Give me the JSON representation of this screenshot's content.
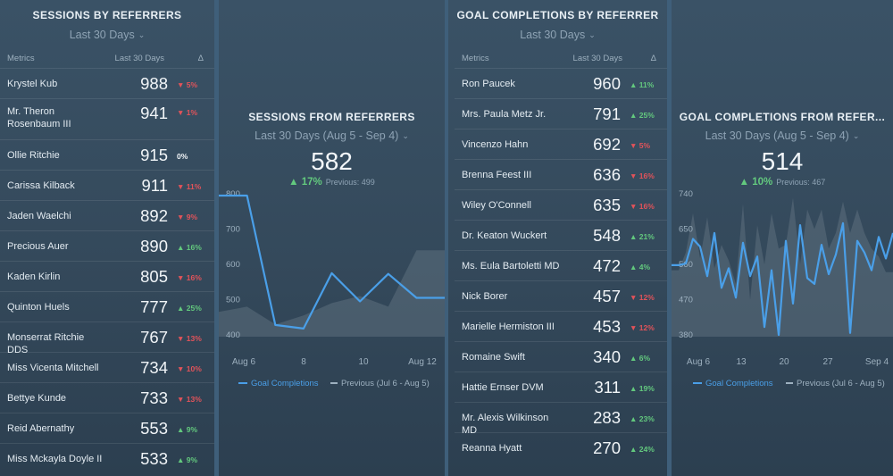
{
  "sessions_table": {
    "title": "SESSIONS BY REFERRERS",
    "period": "Last 30 Days",
    "col_metrics": "Metrics",
    "col_period": "Last 30 Days",
    "col_delta": "Δ",
    "rows": [
      {
        "name": "Krystel Kub",
        "value": "988",
        "delta": "5%",
        "dir": "down"
      },
      {
        "name": "Mr. Theron Rosenbaum III",
        "value": "941",
        "delta": "1%",
        "dir": "down"
      },
      {
        "name": "Ollie Ritchie",
        "value": "915",
        "delta": "0%",
        "dir": "flat"
      },
      {
        "name": "Carissa Kilback",
        "value": "911",
        "delta": "11%",
        "dir": "down"
      },
      {
        "name": "Jaden Waelchi",
        "value": "892",
        "delta": "9%",
        "dir": "down"
      },
      {
        "name": "Precious Auer",
        "value": "890",
        "delta": "16%",
        "dir": "up"
      },
      {
        "name": "Kaden Kirlin",
        "value": "805",
        "delta": "16%",
        "dir": "down"
      },
      {
        "name": "Quinton Huels",
        "value": "777",
        "delta": "25%",
        "dir": "up"
      },
      {
        "name": "Monserrat Ritchie DDS",
        "value": "767",
        "delta": "13%",
        "dir": "down"
      },
      {
        "name": "Miss Vicenta Mitchell",
        "value": "734",
        "delta": "10%",
        "dir": "down"
      },
      {
        "name": "Bettye Kunde",
        "value": "733",
        "delta": "13%",
        "dir": "down"
      },
      {
        "name": "Reid Abernathy",
        "value": "553",
        "delta": "9%",
        "dir": "up"
      },
      {
        "name": "Miss Mckayla Doyle II",
        "value": "533",
        "delta": "9%",
        "dir": "up"
      }
    ]
  },
  "sessions_chart": {
    "title": "SESSIONS FROM REFERRERS",
    "period": "Last 30 Days (Aug 5 - Sep 4)",
    "big_value": "582",
    "change": "17%",
    "change_dir": "up",
    "previous": "Previous: 499",
    "legend_current": "Goal Completions",
    "legend_previous": "Previous (Jul 6 - Aug 5)"
  },
  "goals_table": {
    "title": "GOAL COMPLETIONS BY REFERRER",
    "period": "Last 30 Days",
    "col_metrics": "Metrics",
    "col_period": "Last 30 Days",
    "col_delta": "Δ",
    "rows": [
      {
        "name": "Ron Paucek",
        "value": "960",
        "delta": "11%",
        "dir": "up"
      },
      {
        "name": "Mrs. Paula Metz Jr.",
        "value": "791",
        "delta": "25%",
        "dir": "up"
      },
      {
        "name": "Vincenzo Hahn",
        "value": "692",
        "delta": "5%",
        "dir": "down"
      },
      {
        "name": "Brenna Feest III",
        "value": "636",
        "delta": "16%",
        "dir": "down"
      },
      {
        "name": "Wiley O'Connell",
        "value": "635",
        "delta": "16%",
        "dir": "down"
      },
      {
        "name": "Dr. Keaton Wuckert",
        "value": "548",
        "delta": "21%",
        "dir": "up"
      },
      {
        "name": "Ms. Eula Bartoletti MD",
        "value": "472",
        "delta": "4%",
        "dir": "up"
      },
      {
        "name": "Nick Borer",
        "value": "457",
        "delta": "12%",
        "dir": "down"
      },
      {
        "name": "Marielle Hermiston III",
        "value": "453",
        "delta": "12%",
        "dir": "down"
      },
      {
        "name": "Romaine Swift",
        "value": "340",
        "delta": "6%",
        "dir": "up"
      },
      {
        "name": "Hattie Ernser DVM",
        "value": "311",
        "delta": "19%",
        "dir": "up"
      },
      {
        "name": "Mr. Alexis Wilkinson MD",
        "value": "283",
        "delta": "23%",
        "dir": "up"
      },
      {
        "name": "Reanna Hyatt",
        "value": "270",
        "delta": "24%",
        "dir": "up"
      }
    ]
  },
  "goals_chart": {
    "title": "GOAL COMPLETIONS FROM REFER...",
    "period": "Last 30 Days (Aug 5 - Sep 4)",
    "big_value": "514",
    "change": "10%",
    "change_dir": "up",
    "previous": "Previous: 467",
    "legend_current": "Goal Completions",
    "legend_previous": "Previous (Jul 6 - Aug 5)"
  },
  "colors": {
    "line_current": "#4a9fe8",
    "area_previous": "#5c6f7e",
    "up": "#63c97e",
    "down": "#e2535a"
  },
  "chart_data": [
    {
      "type": "line",
      "title": "SESSIONS FROM REFERRERS",
      "x_ticks": [
        "Aug 6",
        "8",
        "10",
        "Aug 12"
      ],
      "y_ticks": [
        400,
        500,
        600,
        700,
        800
      ],
      "ylim": [
        400,
        800
      ],
      "x": [
        5,
        6,
        7,
        8,
        9,
        10,
        11,
        12,
        13
      ],
      "series": [
        {
          "name": "Goal Completions",
          "values": [
            795,
            795,
            428,
            418,
            575,
            495,
            573,
            505,
            505
          ]
        },
        {
          "name": "Previous (Jul 6 - Aug 5)",
          "values": [
            465,
            480,
            430,
            455,
            490,
            510,
            480,
            640,
            640
          ]
        }
      ],
      "grid": false,
      "legend": "bottom"
    },
    {
      "type": "line",
      "title": "GOAL COMPLETIONS FROM REFER...",
      "x_ticks": [
        "Aug 6",
        "13",
        "20",
        "27",
        "Sep 4"
      ],
      "y_ticks": [
        380,
        470,
        560,
        650,
        740
      ],
      "ylim": [
        380,
        740
      ],
      "x": [
        5,
        6,
        7,
        8,
        9,
        10,
        11,
        12,
        13,
        14,
        15,
        16,
        17,
        18,
        19,
        20,
        21,
        22,
        23,
        24,
        25,
        26,
        27,
        28,
        29,
        30,
        31,
        32,
        33,
        34,
        35,
        36
      ],
      "series": [
        {
          "name": "Goal Completions",
          "values": [
            558,
            558,
            562,
            625,
            605,
            530,
            640,
            500,
            550,
            475,
            615,
            530,
            580,
            400,
            545,
            380,
            620,
            460,
            660,
            525,
            510,
            610,
            535,
            585,
            665,
            385,
            620,
            590,
            545,
            630,
            575,
            640
          ]
        },
        {
          "name": "Previous (Jul 6 - Aug 5)",
          "values": [
            545,
            545,
            590,
            690,
            575,
            680,
            550,
            610,
            570,
            510,
            715,
            470,
            660,
            560,
            690,
            600,
            610,
            730,
            560,
            700,
            650,
            700,
            600,
            640,
            720,
            640,
            700,
            640,
            600,
            580,
            540,
            540
          ]
        }
      ],
      "grid": false,
      "legend": "bottom"
    }
  ]
}
